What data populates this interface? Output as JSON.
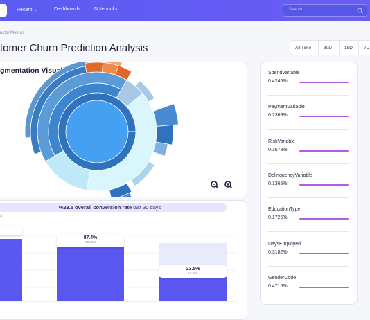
{
  "nav": {
    "items": [
      "Recent",
      "Dashboards",
      "Notebooks"
    ],
    "search_placeholder": "Search"
  },
  "breadcrumb": "nstar Metrics",
  "title": "tomer Churn Prediction Analysis",
  "time_filters": [
    "All Time",
    "30D",
    "15D",
    "7D"
  ],
  "segmentation": {
    "title": "gmentation Visualization"
  },
  "conversion": {
    "banner_bold": "%23.5 overall conversion rate",
    "banner_rest": "last 30 days",
    "axis_label": "s",
    "bars": [
      {
        "percent": "87.4%",
        "amount": "30.89M"
      },
      {
        "percent": "23.5%",
        "amount": "10.89K"
      }
    ]
  },
  "variables": [
    {
      "name": "SpendVariable",
      "value": "0.4246%"
    },
    {
      "name": "PaymentVariable",
      "value": "0.2369%"
    },
    {
      "name": "RiskVariable",
      "value": "0.1678%"
    },
    {
      "name": "DelinquencyVariable",
      "value": "0.1365%"
    },
    {
      "name": "EducationType",
      "value": "0.1725%"
    },
    {
      "name": "DaysEmployed",
      "value": "0.3182%"
    },
    {
      "name": "GenderCode",
      "value": "0.4716%"
    }
  ]
}
